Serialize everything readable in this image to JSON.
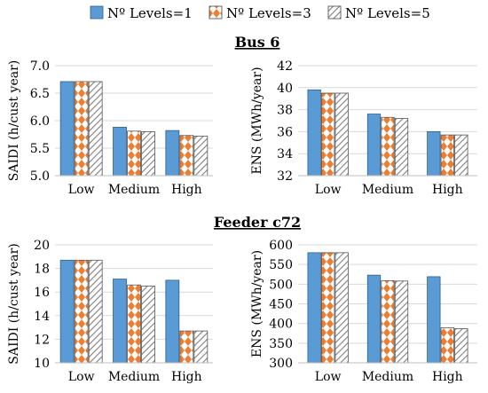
{
  "legend": {
    "items": [
      "Nº Levels=1",
      "Nº Levels=3",
      "Nº Levels=5"
    ]
  },
  "colors": {
    "level1": "#5b9bd5",
    "level3_pattern": "#ed7d31",
    "level5_pattern": "#7f7f7f"
  },
  "sections": [
    "Bus 6",
    "Feeder c72"
  ],
  "chart_data": [
    {
      "type": "bar",
      "section": "Bus 6",
      "categories": [
        "Low",
        "Medium",
        "High"
      ],
      "ylabel": "SAIDI (h/cust year)",
      "ylim": [
        5.0,
        7.0
      ],
      "yticks": [
        "5.0",
        "5.5",
        "6.0",
        "6.5",
        "7.0"
      ],
      "grid": true,
      "series": [
        {
          "name": "Nº Levels=1",
          "values": [
            6.71,
            5.88,
            5.82
          ]
        },
        {
          "name": "Nº Levels=3",
          "values": [
            6.71,
            5.81,
            5.73
          ]
        },
        {
          "name": "Nº Levels=5",
          "values": [
            6.71,
            5.8,
            5.72
          ]
        }
      ]
    },
    {
      "type": "bar",
      "section": "Bus 6",
      "categories": [
        "Low",
        "Medium",
        "High"
      ],
      "ylabel": "ENS (MWh/year)",
      "ylim": [
        32,
        42
      ],
      "yticks": [
        "32",
        "34",
        "36",
        "38",
        "40",
        "42"
      ],
      "grid": true,
      "series": [
        {
          "name": "Nº Levels=1",
          "values": [
            39.8,
            37.6,
            36.0
          ]
        },
        {
          "name": "Nº Levels=3",
          "values": [
            39.5,
            37.3,
            35.7
          ]
        },
        {
          "name": "Nº Levels=5",
          "values": [
            39.5,
            37.2,
            35.7
          ]
        }
      ]
    },
    {
      "type": "bar",
      "section": "Feeder c72",
      "categories": [
        "Low",
        "Medium",
        "High"
      ],
      "ylabel": "SAIDI (h/cust year)",
      "ylim": [
        10,
        20
      ],
      "yticks": [
        "10",
        "12",
        "14",
        "16",
        "18",
        "20"
      ],
      "grid": true,
      "series": [
        {
          "name": "Nº Levels=1",
          "values": [
            18.7,
            17.1,
            17.0
          ]
        },
        {
          "name": "Nº Levels=3",
          "values": [
            18.7,
            16.6,
            12.7
          ]
        },
        {
          "name": "Nº Levels=5",
          "values": [
            18.7,
            16.5,
            12.7
          ]
        }
      ]
    },
    {
      "type": "bar",
      "section": "Feeder c72",
      "categories": [
        "Low",
        "Medium",
        "High"
      ],
      "ylabel": "ENS (MWh/year)",
      "ylim": [
        300,
        600
      ],
      "yticks": [
        "300",
        "350",
        "400",
        "450",
        "500",
        "550",
        "600"
      ],
      "grid": true,
      "series": [
        {
          "name": "Nº Levels=1",
          "values": [
            580,
            523,
            519
          ]
        },
        {
          "name": "Nº Levels=3",
          "values": [
            580,
            509,
            389
          ]
        },
        {
          "name": "Nº Levels=5",
          "values": [
            580,
            508,
            387
          ]
        }
      ]
    }
  ]
}
